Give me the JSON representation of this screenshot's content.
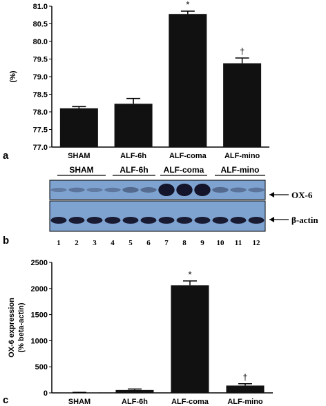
{
  "chart_data": [
    {
      "type": "bar",
      "panel": "a",
      "ylabel": "(%)",
      "ylim": [
        77.0,
        81.0
      ],
      "yticks": [
        "77.0",
        "77.5",
        "78.0",
        "78.5",
        "79.0",
        "79.5",
        "80.0",
        "80.5",
        "81.0"
      ],
      "categories": [
        "SHAM",
        "ALF-6h",
        "ALF-coma",
        "ALF-mino"
      ],
      "values": [
        78.1,
        78.23,
        80.78,
        79.38
      ],
      "errors": [
        0.05,
        0.15,
        0.08,
        0.15
      ],
      "annotations": [
        "",
        "",
        "*",
        "†"
      ],
      "color": "#111111"
    },
    {
      "type": "bar",
      "panel": "c",
      "ylabel": "OX-6 expression\n(% beta-actin)",
      "ylabel_lines": [
        "OX-6 expression",
        "(% beta-actin)"
      ],
      "ylim": [
        0,
        2500
      ],
      "yticks": [
        "0",
        "500",
        "1000",
        "1500",
        "2000",
        "2500"
      ],
      "categories": [
        "SHAM",
        "ALF-6h",
        "ALF-coma",
        "ALF-mino"
      ],
      "values": [
        5,
        55,
        2060,
        140
      ],
      "errors": [
        5,
        20,
        85,
        35
      ],
      "annotations": [
        "",
        "",
        "*",
        "†"
      ],
      "color": "#111111"
    }
  ],
  "blot": {
    "panel": "b",
    "groups": [
      "SHAM",
      "ALF-6h",
      "ALF-coma",
      "ALF-mino"
    ],
    "lanes": [
      "1",
      "2",
      "3",
      "4",
      "5",
      "6",
      "7",
      "8",
      "9",
      "10",
      "11",
      "12"
    ],
    "bands": [
      "OX-6",
      "β-actin"
    ],
    "ox6_intensity": [
      0.15,
      0.2,
      0.15,
      0.18,
      0.3,
      0.28,
      1.0,
      1.0,
      1.0,
      0.3,
      0.22,
      0.2
    ],
    "actin_intensity": [
      1,
      1,
      1,
      1,
      1,
      1,
      1,
      1,
      1,
      1,
      1,
      1
    ],
    "background_color": "#7fa3d0",
    "band_color": "#14142a"
  }
}
